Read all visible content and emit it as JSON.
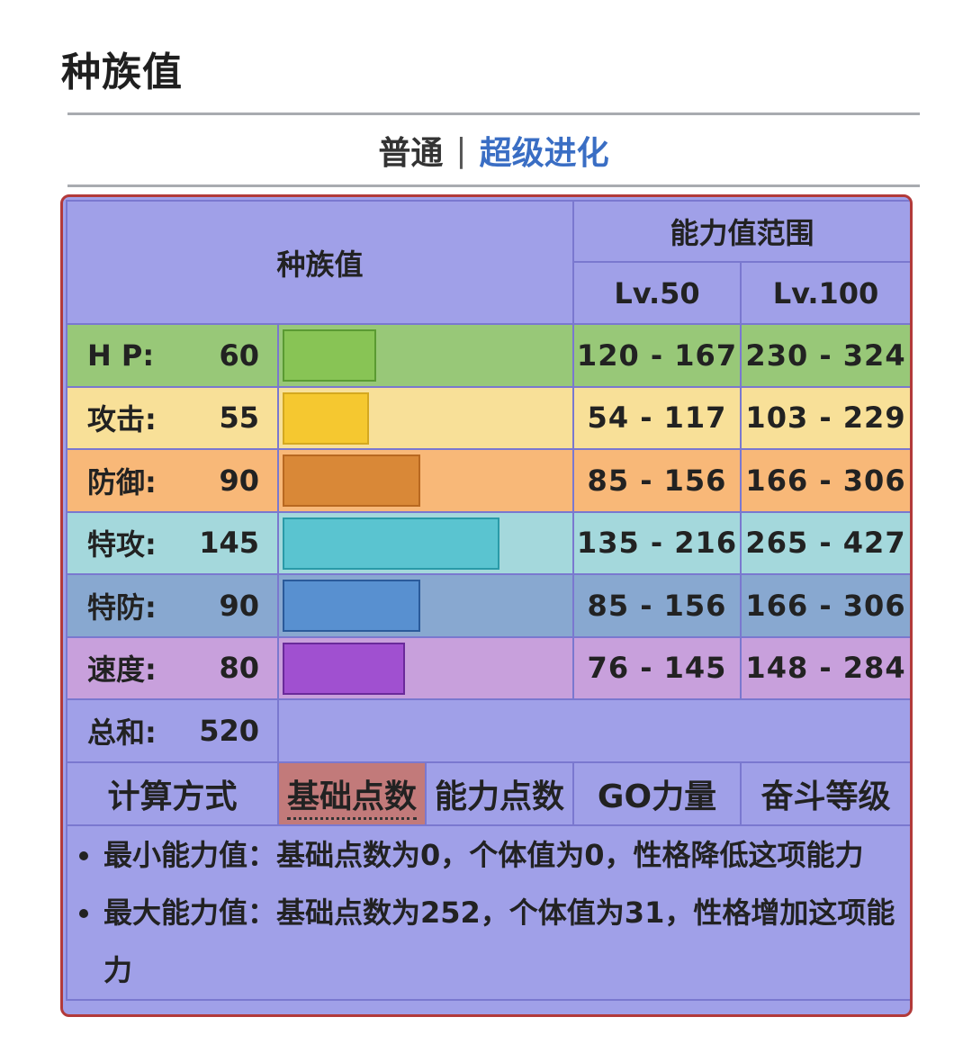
{
  "page_title": "种族值",
  "tabs": {
    "normal": "普通",
    "separator": "|",
    "mega": "超级进化"
  },
  "header": {
    "base_title": "种族值",
    "range_title": "能力值范围",
    "lv50": "Lv.50",
    "lv100": "Lv.100"
  },
  "stats": [
    {
      "label": "H P:",
      "value": "60",
      "lv50": "120 - 167",
      "lv100": "230 - 324",
      "row_color": "#98c878",
      "bar_color": "#88c455",
      "bar_border": "#5a9a32"
    },
    {
      "label": "攻击:",
      "value": "55",
      "lv50": "54 - 117",
      "lv100": "103 - 229",
      "row_color": "#f8e098",
      "bar_color": "#f5c830",
      "bar_border": "#d4a820"
    },
    {
      "label": "防御:",
      "value": "90",
      "lv50": "85 - 156",
      "lv100": "166 - 306",
      "row_color": "#f8b878",
      "bar_color": "#d98837",
      "bar_border": "#b86820"
    },
    {
      "label": "特攻:",
      "value": "145",
      "lv50": "135 - 216",
      "lv100": "265 - 427",
      "row_color": "#a4d8dc",
      "bar_color": "#5ac4d0",
      "bar_border": "#2a9aa8"
    },
    {
      "label": "特防:",
      "value": "90",
      "lv50": "85 - 156",
      "lv100": "166 - 306",
      "row_color": "#88a8d0",
      "bar_color": "#5890d0",
      "bar_border": "#2a5a9a"
    },
    {
      "label": "速度:",
      "value": "80",
      "lv50": "76 - 145",
      "lv100": "148 - 284",
      "row_color": "#c8a0dc",
      "bar_color": "#a050d0",
      "bar_border": "#6a2a9a"
    }
  ],
  "total": {
    "label": "总和:",
    "value": "520"
  },
  "calc": {
    "label": "计算方式",
    "options": [
      "基础点数",
      "能力点数",
      "GO力量",
      "奋斗等级"
    ],
    "active": "基础点数"
  },
  "notes": [
    "最小能力值：基础点数为0，个体值为0，性格降低这项能力",
    "最大能力值：基础点数为252，个体值为31，性格增加这项能力"
  ]
}
